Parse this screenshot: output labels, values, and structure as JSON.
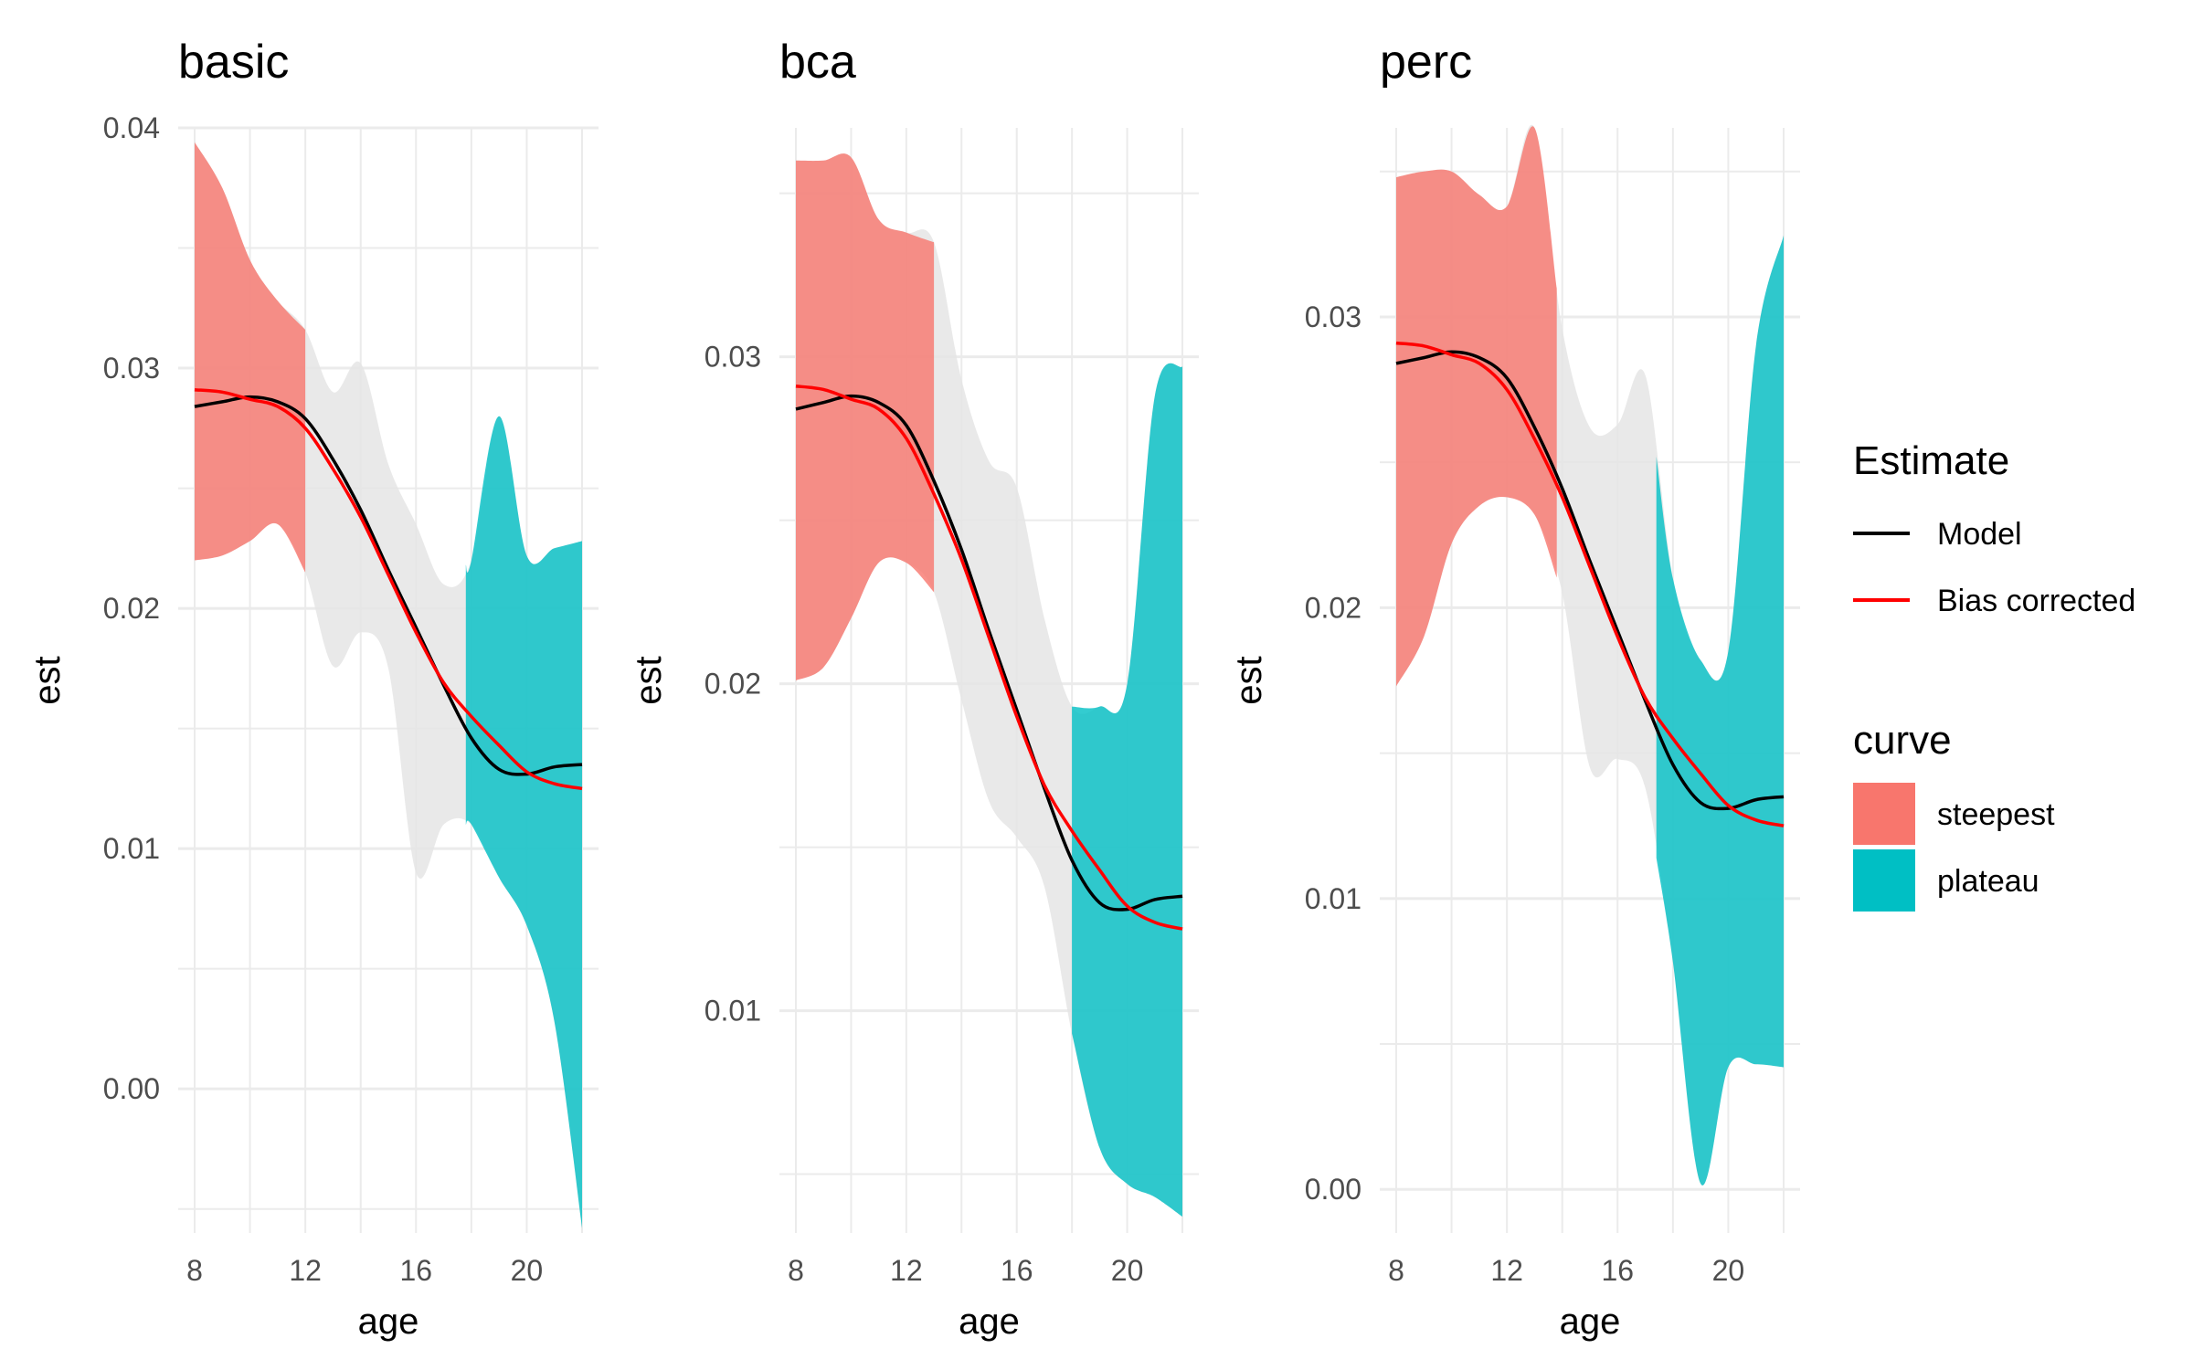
{
  "figure": {
    "colors": {
      "model": "#000000",
      "bias_corrected": "#ff0000",
      "steepest": "#f8766d",
      "plateau": "#00bfc4",
      "other_band": "#e5e5e5",
      "grid": "#ebebeb",
      "text": "#000000",
      "tick_text": "#4d4d4d"
    }
  },
  "legend": {
    "estimate_title": "Estimate",
    "estimate_items": [
      {
        "label": "Model",
        "color": "#000000"
      },
      {
        "label": "Bias corrected",
        "color": "#ff0000"
      }
    ],
    "curve_title": "curve",
    "curve_items": [
      {
        "label": "steepest",
        "color": "#f8766d"
      },
      {
        "label": "plateau",
        "color": "#00bfc4"
      }
    ]
  },
  "chart_data": [
    {
      "type": "area",
      "title": "basic",
      "xlabel": "age",
      "ylabel": "est",
      "xlim": [
        8,
        22
      ],
      "ylim": [
        -0.006,
        0.04
      ],
      "x_ticks": [
        "8",
        "12",
        "16",
        "20"
      ],
      "y_ticks": [
        "0.00",
        "0.01",
        "0.02",
        "0.03",
        "0.04"
      ],
      "x_tick_values": [
        8,
        12,
        16,
        20
      ],
      "y_tick_values": [
        0.0,
        0.01,
        0.02,
        0.03,
        0.04
      ],
      "steepest_range": [
        8,
        12
      ],
      "plateau_range": [
        17.8,
        22
      ],
      "series": [
        {
          "name": "Model",
          "x": [
            8,
            9,
            10,
            11,
            12,
            13,
            14,
            15,
            16,
            17,
            18,
            19,
            20,
            21,
            22
          ],
          "values": [
            0.0284,
            0.0286,
            0.0288,
            0.0286,
            0.0279,
            0.0262,
            0.0241,
            0.0216,
            0.0192,
            0.0168,
            0.0146,
            0.0133,
            0.0131,
            0.0134,
            0.0135
          ]
        },
        {
          "name": "Bias corrected",
          "x": [
            8,
            9,
            10,
            11,
            12,
            13,
            14,
            15,
            16,
            17,
            18,
            19,
            20,
            21,
            22
          ],
          "values": [
            0.0291,
            0.029,
            0.0287,
            0.0284,
            0.0275,
            0.0258,
            0.0238,
            0.0214,
            0.019,
            0.0169,
            0.0155,
            0.0143,
            0.0132,
            0.0127,
            0.0125
          ]
        }
      ],
      "band": {
        "x": [
          8,
          9,
          10,
          11,
          12,
          13,
          14,
          15,
          16,
          17,
          18,
          19,
          20,
          21,
          22
        ],
        "upper": [
          0.0394,
          0.0375,
          0.0345,
          0.0328,
          0.0316,
          0.029,
          0.0302,
          0.026,
          0.0235,
          0.021,
          0.022,
          0.028,
          0.0222,
          0.0225,
          0.0228
        ],
        "lower": [
          0.022,
          0.0222,
          0.0228,
          0.0235,
          0.0215,
          0.0176,
          0.019,
          0.0175,
          0.009,
          0.011,
          0.011,
          0.0088,
          0.0068,
          0.0028,
          -0.0058
        ]
      }
    },
    {
      "type": "area",
      "title": "bca",
      "xlabel": "age",
      "ylabel": "est",
      "xlim": [
        8,
        22
      ],
      "ylim": [
        0.0032,
        0.037
      ],
      "x_ticks": [
        "8",
        "12",
        "16",
        "20"
      ],
      "y_ticks": [
        "0.01",
        "0.02",
        "0.03"
      ],
      "x_tick_values": [
        8,
        12,
        16,
        20
      ],
      "y_tick_values": [
        0.01,
        0.02,
        0.03
      ],
      "steepest_range": [
        8,
        13
      ],
      "plateau_range": [
        18,
        22
      ],
      "series": [
        {
          "name": "Model",
          "x": [
            8,
            9,
            10,
            11,
            12,
            13,
            14,
            15,
            16,
            17,
            18,
            19,
            20,
            21,
            22
          ],
          "values": [
            0.0284,
            0.0286,
            0.0288,
            0.0286,
            0.0279,
            0.0262,
            0.0241,
            0.0216,
            0.0192,
            0.0168,
            0.0146,
            0.0133,
            0.0131,
            0.0134,
            0.0135
          ]
        },
        {
          "name": "Bias corrected",
          "x": [
            8,
            9,
            10,
            11,
            12,
            13,
            14,
            15,
            16,
            17,
            18,
            19,
            20,
            21,
            22
          ],
          "values": [
            0.0291,
            0.029,
            0.0287,
            0.0284,
            0.0275,
            0.0258,
            0.0238,
            0.0214,
            0.019,
            0.0169,
            0.0155,
            0.0143,
            0.0132,
            0.0127,
            0.0125
          ]
        }
      ],
      "band": {
        "x": [
          8,
          9,
          10,
          11,
          12,
          13,
          14,
          15,
          16,
          17,
          18,
          19,
          20,
          21,
          22
        ],
        "upper": [
          0.036,
          0.036,
          0.0361,
          0.0342,
          0.0338,
          0.0335,
          0.0293,
          0.0268,
          0.026,
          0.022,
          0.0193,
          0.0193,
          0.02,
          0.0288,
          0.0297
        ],
        "lower": [
          0.0201,
          0.0205,
          0.022,
          0.0237,
          0.0237,
          0.0228,
          0.0195,
          0.0164,
          0.0153,
          0.0138,
          0.0093,
          0.0058,
          0.0047,
          0.0043,
          0.0037
        ]
      }
    },
    {
      "type": "area",
      "title": "perc",
      "xlabel": "age",
      "ylabel": "est",
      "xlim": [
        8,
        22
      ],
      "ylim": [
        -0.0015,
        0.0365
      ],
      "x_ticks": [
        "8",
        "12",
        "16",
        "20"
      ],
      "y_ticks": [
        "0.00",
        "0.01",
        "0.02",
        "0.03"
      ],
      "x_tick_values": [
        8,
        12,
        16,
        20
      ],
      "y_tick_values": [
        0.0,
        0.01,
        0.02,
        0.03
      ],
      "steepest_range": [
        8,
        13.8
      ],
      "plateau_range": [
        17.4,
        22
      ],
      "series": [
        {
          "name": "Model",
          "x": [
            8,
            9,
            10,
            11,
            12,
            13,
            14,
            15,
            16,
            17,
            18,
            19,
            20,
            21,
            22
          ],
          "values": [
            0.0284,
            0.0286,
            0.0288,
            0.0286,
            0.0279,
            0.0262,
            0.0241,
            0.0216,
            0.0192,
            0.0168,
            0.0146,
            0.0133,
            0.0131,
            0.0134,
            0.0135
          ]
        },
        {
          "name": "Bias corrected",
          "x": [
            8,
            9,
            10,
            11,
            12,
            13,
            14,
            15,
            16,
            17,
            18,
            19,
            20,
            21,
            22
          ],
          "values": [
            0.0291,
            0.029,
            0.0287,
            0.0284,
            0.0275,
            0.0258,
            0.0238,
            0.0214,
            0.019,
            0.0169,
            0.0155,
            0.0143,
            0.0132,
            0.0127,
            0.0125
          ]
        }
      ],
      "band": {
        "x": [
          8,
          9,
          10,
          11,
          12,
          13,
          14,
          15,
          16,
          17,
          18,
          19,
          20,
          21,
          22
        ],
        "upper": [
          0.0348,
          0.035,
          0.035,
          0.0342,
          0.0338,
          0.0365,
          0.0296,
          0.0262,
          0.0263,
          0.028,
          0.021,
          0.0182,
          0.0185,
          0.029,
          0.0328
        ],
        "lower": [
          0.0173,
          0.019,
          0.0222,
          0.0235,
          0.0238,
          0.0232,
          0.0205,
          0.0145,
          0.0148,
          0.0138,
          0.0078,
          0.0002,
          0.0042,
          0.0043,
          0.0042
        ]
      }
    }
  ]
}
